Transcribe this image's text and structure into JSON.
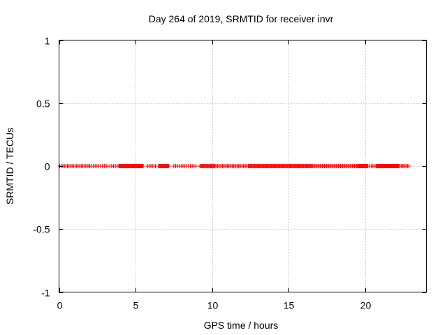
{
  "chart_data": {
    "type": "scatter",
    "title": "Day 264 of 2019, SRMTID for receiver invr",
    "xlabel": "GPS time / hours",
    "ylabel": "SRMTID / TECUs",
    "xlim": [
      0,
      24
    ],
    "ylim": [
      -1,
      1
    ],
    "xticks": [
      0,
      5,
      10,
      15,
      20
    ],
    "yticks": [
      -1,
      -0.5,
      0,
      0.5,
      1
    ],
    "xtick_labels": [
      "0",
      "5",
      "10",
      "15",
      "20"
    ],
    "ytick_labels": [
      "-1",
      "-0.5",
      "0",
      "0.5",
      "1"
    ],
    "grid": true,
    "marker": "plus",
    "series": [
      {
        "name": "SRMTID",
        "color": "#ff0000",
        "y_value": 0,
        "x_segments": [
          {
            "start": 0.05,
            "end": 2.0,
            "step": 0.1
          },
          {
            "start": 2.0,
            "end": 3.9,
            "step": 0.12
          },
          {
            "start": 3.9,
            "end": 5.5,
            "step": 0.04
          },
          {
            "start": 5.8,
            "end": 6.3,
            "step": 0.1
          },
          {
            "start": 6.5,
            "end": 7.2,
            "step": 0.04
          },
          {
            "start": 7.5,
            "end": 9.0,
            "step": 0.12
          },
          {
            "start": 9.2,
            "end": 10.2,
            "step": 0.05
          },
          {
            "start": 10.2,
            "end": 12.4,
            "step": 0.08
          },
          {
            "start": 12.4,
            "end": 16.5,
            "step": 0.05
          },
          {
            "start": 16.5,
            "end": 19.5,
            "step": 0.07
          },
          {
            "start": 19.5,
            "end": 20.2,
            "step": 0.04
          },
          {
            "start": 20.3,
            "end": 20.7,
            "step": 0.1
          },
          {
            "start": 20.7,
            "end": 22.2,
            "step": 0.03
          },
          {
            "start": 22.2,
            "end": 22.85,
            "step": 0.08
          }
        ]
      }
    ]
  }
}
